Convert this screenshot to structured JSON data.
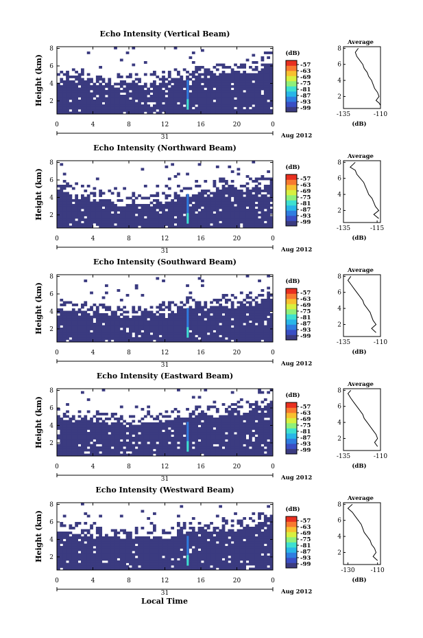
{
  "figure": {
    "xlabel": "Local Time",
    "date_label": "Aug 2012",
    "day_label": "31"
  },
  "colors": {
    "background_echo": "#3b3b80",
    "scale": [
      "#3b3b80",
      "#3a4fc4",
      "#2f7de0",
      "#29b6e8",
      "#3ee0d0",
      "#8ff07a",
      "#d8f040",
      "#f8c030",
      "#f87a30",
      "#e83020"
    ]
  },
  "chart_data": [
    {
      "type": "heatmap",
      "title": "Echo Intensity (Vertical Beam)",
      "ylabel": "Height (km)",
      "xticks": [
        "0",
        "4",
        "8",
        "12",
        "16",
        "20",
        "0"
      ],
      "yticks": [
        "2",
        "4",
        "6",
        "8"
      ],
      "x_range_hours": [
        0,
        24
      ],
      "y_range_km": [
        0.5,
        8.2
      ],
      "colorbar": {
        "unit": "(dB)",
        "ticks": [
          "-57",
          "-63",
          "-69",
          "-75",
          "-81",
          "-87",
          "-93",
          "-99"
        ]
      },
      "echo_top_km": [
        [
          0,
          4.4
        ],
        [
          4,
          4.0
        ],
        [
          8,
          3.7
        ],
        [
          12,
          4.1
        ],
        [
          14.5,
          4.8
        ],
        [
          18,
          5.0
        ],
        [
          22,
          5.4
        ],
        [
          24,
          6.2
        ]
      ],
      "spike_hour": 14.5,
      "average": {
        "title": "Average",
        "xlabel": "(dB)",
        "xticks": [
          "-135",
          "-110"
        ],
        "yticks": [
          "2",
          "4",
          "6",
          "8"
        ],
        "xlim": [
          -135,
          -110
        ],
        "ylim": [
          0.5,
          8.2
        ],
        "profile": [
          [
            -125,
            8.0
          ],
          [
            -127,
            7.5
          ],
          [
            -126,
            7.0
          ],
          [
            -124,
            6.5
          ],
          [
            -122,
            6.0
          ],
          [
            -121,
            5.5
          ],
          [
            -119,
            5.0
          ],
          [
            -118,
            4.5
          ],
          [
            -116,
            4.0
          ],
          [
            -115,
            3.5
          ],
          [
            -114,
            3.0
          ],
          [
            -112,
            2.5
          ],
          [
            -111,
            2.0
          ],
          [
            -113,
            1.5
          ],
          [
            -111,
            1.2
          ],
          [
            -110,
            0.9
          ]
        ]
      }
    },
    {
      "type": "heatmap",
      "title": "Echo Intensity (Northward Beam)",
      "ylabel": "Height (km)",
      "xticks": [
        "0",
        "4",
        "8",
        "12",
        "16",
        "20",
        "0"
      ],
      "yticks": [
        "2",
        "4",
        "6",
        "8"
      ],
      "x_range_hours": [
        0,
        24
      ],
      "y_range_km": [
        0.5,
        8.2
      ],
      "colorbar": {
        "unit": "(dB)",
        "ticks": [
          "-57",
          "-63",
          "-69",
          "-75",
          "-81",
          "-87",
          "-93",
          "-99"
        ]
      },
      "echo_top_km": [
        [
          0,
          4.6
        ],
        [
          4,
          3.7
        ],
        [
          8,
          3.2
        ],
        [
          12,
          3.4
        ],
        [
          14.5,
          4.4
        ],
        [
          18,
          4.8
        ],
        [
          22,
          5.0
        ],
        [
          24,
          6.0
        ]
      ],
      "spike_hour": 14.5,
      "average": {
        "title": "Average",
        "xlabel": "(dB)",
        "xticks": [
          "-135",
          "-115"
        ],
        "yticks": [
          "2",
          "4",
          "6",
          "8"
        ],
        "xlim": [
          -135,
          -113
        ],
        "ylim": [
          0.5,
          8.2
        ],
        "profile": [
          [
            -128,
            8.0
          ],
          [
            -131,
            7.4
          ],
          [
            -128,
            7.0
          ],
          [
            -127,
            6.5
          ],
          [
            -125,
            6.0
          ],
          [
            -123,
            5.5
          ],
          [
            -122,
            5.0
          ],
          [
            -121,
            4.5
          ],
          [
            -120,
            4.0
          ],
          [
            -118,
            3.5
          ],
          [
            -117,
            3.0
          ],
          [
            -116,
            2.5
          ],
          [
            -114,
            2.0
          ],
          [
            -117,
            1.5
          ],
          [
            -114,
            1.0
          ]
        ]
      }
    },
    {
      "type": "heatmap",
      "title": "Echo Intensity (Southward Beam)",
      "ylabel": "Height (km)",
      "xticks": [
        "0",
        "4",
        "8",
        "12",
        "16",
        "20",
        "0"
      ],
      "yticks": [
        "2",
        "4",
        "6",
        "8"
      ],
      "x_range_hours": [
        0,
        24
      ],
      "y_range_km": [
        0.5,
        8.2
      ],
      "colorbar": {
        "unit": "(dB)",
        "ticks": [
          "-57",
          "-63",
          "-69",
          "-75",
          "-81",
          "-87",
          "-93",
          "-99"
        ]
      },
      "echo_top_km": [
        [
          0,
          4.2
        ],
        [
          4,
          3.8
        ],
        [
          8,
          3.4
        ],
        [
          12,
          3.6
        ],
        [
          14.5,
          4.3
        ],
        [
          18,
          4.6
        ],
        [
          22,
          4.8
        ],
        [
          24,
          6.0
        ]
      ],
      "spike_hour": 14.5,
      "average": {
        "title": "Average",
        "xlabel": "(dB)",
        "xticks": [
          "-135",
          "-110"
        ],
        "yticks": [
          "2",
          "4",
          "6",
          "8"
        ],
        "xlim": [
          -135,
          -110
        ],
        "ylim": [
          0.5,
          8.2
        ],
        "profile": [
          [
            -130,
            8.0
          ],
          [
            -132,
            7.5
          ],
          [
            -130,
            7.0
          ],
          [
            -128,
            6.5
          ],
          [
            -126,
            6.0
          ],
          [
            -124,
            5.5
          ],
          [
            -122,
            5.0
          ],
          [
            -121,
            4.5
          ],
          [
            -119,
            4.0
          ],
          [
            -117,
            3.5
          ],
          [
            -116,
            3.0
          ],
          [
            -115,
            2.5
          ],
          [
            -113,
            2.0
          ],
          [
            -116,
            1.5
          ],
          [
            -113,
            1.0
          ]
        ]
      }
    },
    {
      "type": "heatmap",
      "title": "Echo Intensity (Eastward Beam)",
      "ylabel": "Height (km)",
      "xticks": [
        "0",
        "4",
        "8",
        "12",
        "16",
        "20",
        "0"
      ],
      "yticks": [
        "2",
        "4",
        "6",
        "8"
      ],
      "x_range_hours": [
        0,
        24
      ],
      "y_range_km": [
        0.5,
        8.2
      ],
      "colorbar": {
        "unit": "(dB)",
        "ticks": [
          "-57",
          "-63",
          "-69",
          "-75",
          "-81",
          "-87",
          "-93",
          "-99"
        ]
      },
      "echo_top_km": [
        [
          0,
          5.0
        ],
        [
          4,
          4.6
        ],
        [
          8,
          4.2
        ],
        [
          12,
          4.6
        ],
        [
          14.5,
          5.0
        ],
        [
          18,
          5.2
        ],
        [
          22,
          5.6
        ],
        [
          24,
          7.0
        ]
      ],
      "spike_hour": 14.5,
      "average": {
        "title": "Average",
        "xlabel": "(dB)",
        "xticks": [
          "-135",
          "-110"
        ],
        "yticks": [
          "2",
          "4",
          "6",
          "8"
        ],
        "xlim": [
          -135,
          -110
        ],
        "ylim": [
          0.5,
          8.2
        ],
        "profile": [
          [
            -130,
            8.0
          ],
          [
            -132,
            7.6
          ],
          [
            -130,
            7.0
          ],
          [
            -128,
            6.5
          ],
          [
            -126,
            6.0
          ],
          [
            -124,
            5.5
          ],
          [
            -122,
            5.0
          ],
          [
            -121,
            4.5
          ],
          [
            -119,
            4.0
          ],
          [
            -117,
            3.5
          ],
          [
            -115,
            3.0
          ],
          [
            -113,
            2.5
          ],
          [
            -112,
            2.0
          ],
          [
            -114,
            1.5
          ],
          [
            -112,
            1.0
          ]
        ]
      }
    },
    {
      "type": "heatmap",
      "title": "Echo Intensity (Westward Beam)",
      "ylabel": "Height (km)",
      "xticks": [
        "0",
        "4",
        "8",
        "12",
        "16",
        "20",
        "0"
      ],
      "yticks": [
        "2",
        "4",
        "6",
        "8"
      ],
      "x_range_hours": [
        0,
        24
      ],
      "y_range_km": [
        0.5,
        8.2
      ],
      "colorbar": {
        "unit": "(dB)",
        "ticks": [
          "-57",
          "-63",
          "-69",
          "-75",
          "-81",
          "-87",
          "-93",
          "-99"
        ]
      },
      "echo_top_km": [
        [
          0,
          4.8
        ],
        [
          4,
          4.4
        ],
        [
          8,
          4.0
        ],
        [
          12,
          4.2
        ],
        [
          14.5,
          4.8
        ],
        [
          18,
          5.0
        ],
        [
          22,
          5.4
        ],
        [
          24,
          6.8
        ]
      ],
      "spike_hour": 14.5,
      "average": {
        "title": "Average",
        "xlabel": "(dB)",
        "xticks": [
          "-130",
          "-110"
        ],
        "yticks": [
          "2",
          "4",
          "6",
          "8"
        ],
        "xlim": [
          -133,
          -108
        ],
        "ylim": [
          0.5,
          8.2
        ],
        "profile": [
          [
            -127,
            8.0
          ],
          [
            -130,
            7.5
          ],
          [
            -127,
            7.0
          ],
          [
            -125,
            6.5
          ],
          [
            -123,
            6.0
          ],
          [
            -121,
            5.5
          ],
          [
            -120,
            5.0
          ],
          [
            -119,
            4.5
          ],
          [
            -117,
            4.0
          ],
          [
            -115,
            3.5
          ],
          [
            -114,
            3.0
          ],
          [
            -112,
            2.5
          ],
          [
            -111,
            2.0
          ],
          [
            -113,
            1.5
          ],
          [
            -110,
            1.0
          ]
        ]
      }
    }
  ]
}
